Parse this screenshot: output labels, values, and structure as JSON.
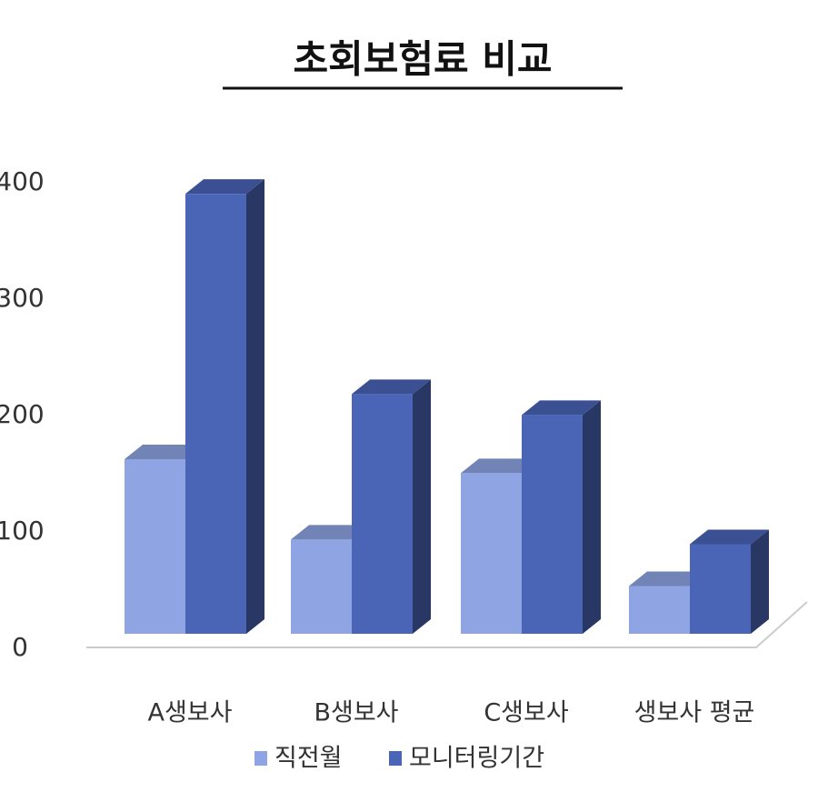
{
  "chart_data": {
    "type": "bar3d",
    "title": "초회보험료 비교",
    "categories": [
      "A생보사",
      "B생보사",
      "C생보사",
      "생보사 평균"
    ],
    "series": [
      {
        "name": "직전월",
        "color": "#8fa4e2",
        "values": [
          150,
          81,
          138,
          41
        ]
      },
      {
        "name": "모니터링기간",
        "color": "#4a64b6",
        "values": [
          378,
          206,
          188,
          77
        ]
      }
    ],
    "ylim": [
      0,
      400
    ],
    "yticks": [
      0,
      100,
      200,
      300,
      400
    ],
    "legend": "bottom"
  }
}
